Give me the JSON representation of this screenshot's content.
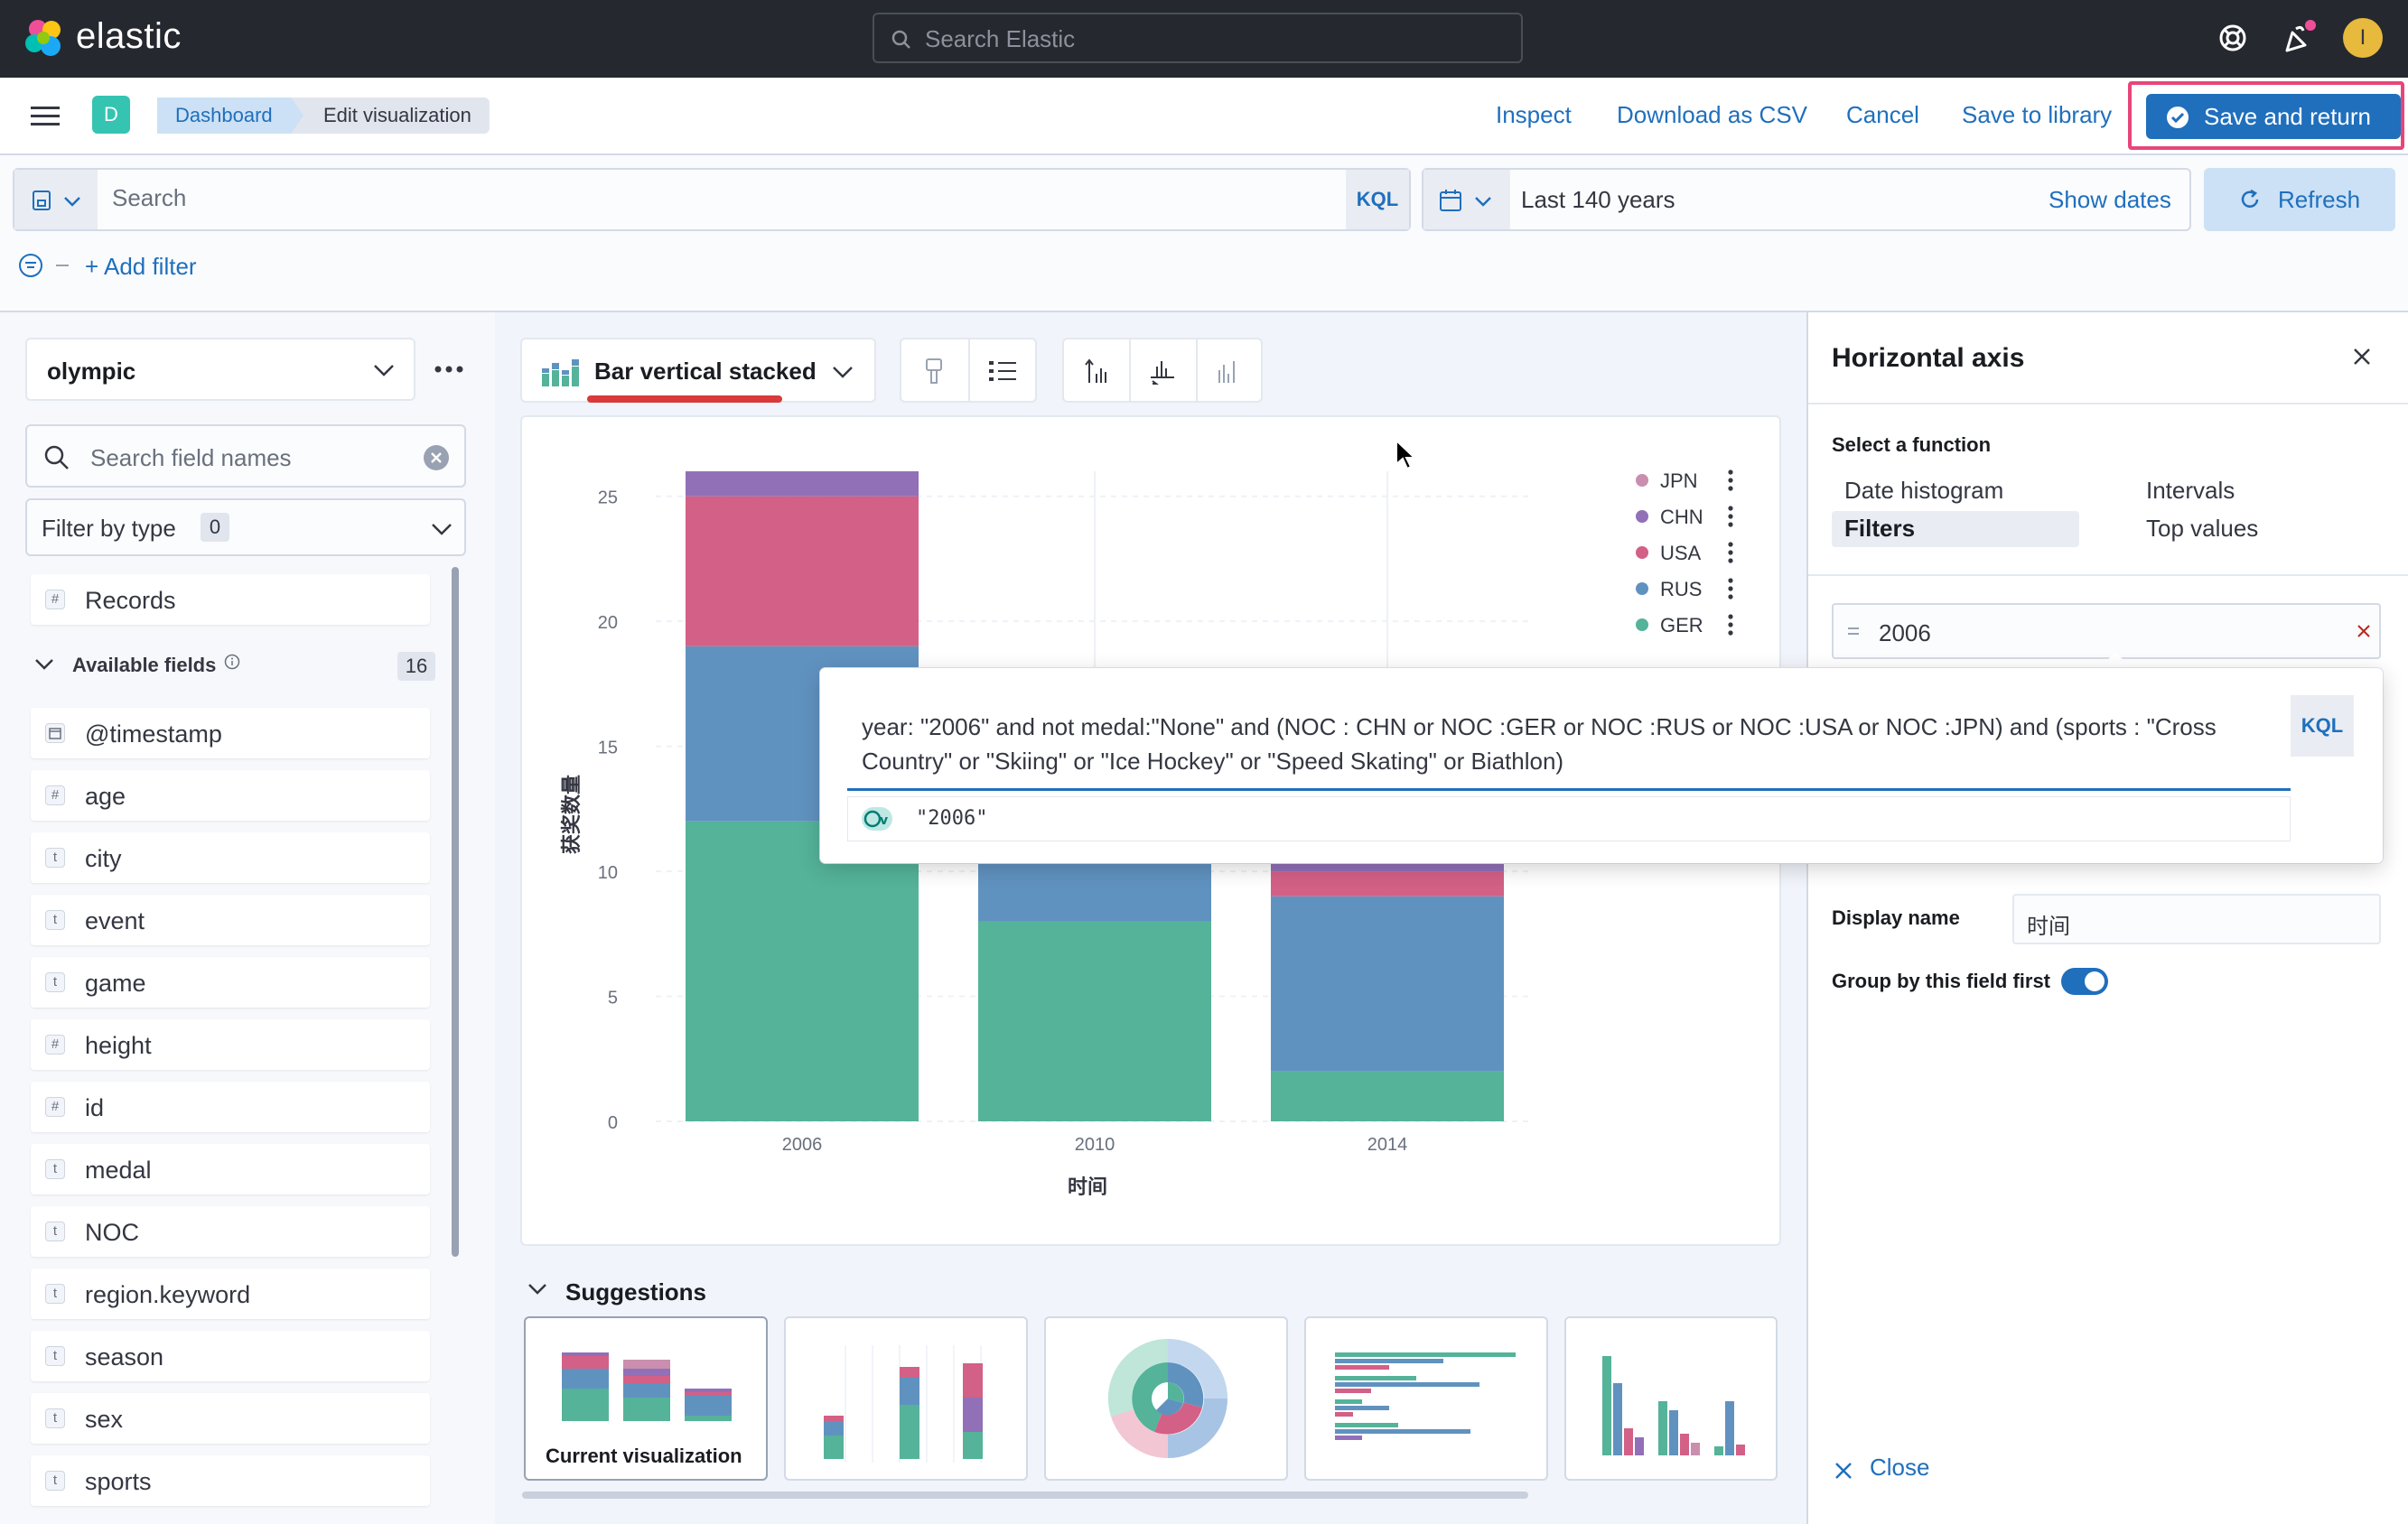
{
  "header": {
    "brand": "elastic",
    "search_placeholder": "Search Elastic",
    "avatar_initial": "I"
  },
  "nav": {
    "space_badge": "D",
    "breadcrumbs": [
      "Dashboard",
      "Edit visualization"
    ],
    "links": [
      "Inspect",
      "Download as CSV",
      "Cancel",
      "Save to library"
    ],
    "save_return": "Save and return"
  },
  "querybar": {
    "search_placeholder": "Search",
    "kql": "KQL",
    "date_range": "Last 140 years",
    "show_dates": "Show dates",
    "refresh": "Refresh",
    "add_filter": "+ Add filter"
  },
  "datasource": {
    "name": "olympic",
    "search_placeholder": "Search field names",
    "filter_by_type": "Filter by type",
    "filter_count": "0",
    "records": "Records",
    "available_fields": "Available fields",
    "available_count": "16",
    "fields": [
      {
        "type": "date",
        "name": "@timestamp"
      },
      {
        "type": "#",
        "name": "age"
      },
      {
        "type": "t",
        "name": "city"
      },
      {
        "type": "t",
        "name": "event"
      },
      {
        "type": "t",
        "name": "game"
      },
      {
        "type": "#",
        "name": "height"
      },
      {
        "type": "#",
        "name": "id"
      },
      {
        "type": "t",
        "name": "medal"
      },
      {
        "type": "t",
        "name": "NOC"
      },
      {
        "type": "t",
        "name": "region.keyword"
      },
      {
        "type": "t",
        "name": "season"
      },
      {
        "type": "t",
        "name": "sex"
      },
      {
        "type": "t",
        "name": "sports"
      }
    ]
  },
  "workspace": {
    "vis_type": "Bar vertical stacked",
    "suggestions_title": "Suggestions",
    "current_vis_label": "Current visualization"
  },
  "chart_data": {
    "type": "bar",
    "stacked": true,
    "categories": [
      "2006",
      "2010",
      "2014"
    ],
    "xlabel": "时间",
    "ylabel": "获奖数量",
    "ylim": [
      0,
      26
    ],
    "yticks": [
      0,
      5,
      10,
      15,
      20,
      25
    ],
    "legend_position": "top-right",
    "series": [
      {
        "name": "GER",
        "color": "#54b399",
        "values": [
          12,
          8,
          2
        ]
      },
      {
        "name": "RUS",
        "color": "#6092c0",
        "values": [
          7,
          5,
          7
        ]
      },
      {
        "name": "USA",
        "color": "#d36086",
        "values": [
          6,
          1,
          1
        ]
      },
      {
        "name": "CHN",
        "color": "#9170b8",
        "values": [
          1,
          1,
          1
        ]
      },
      {
        "name": "JPN",
        "color": "#ca8eae",
        "values": [
          0,
          2,
          0
        ]
      }
    ],
    "legend_order": [
      "JPN",
      "CHN",
      "USA",
      "RUS",
      "GER"
    ]
  },
  "rightpanel": {
    "title": "Horizontal axis",
    "select_function": "Select a function",
    "functions": [
      "Date histogram",
      "Intervals",
      "Filters",
      "Top values"
    ],
    "selected_function": "Filters",
    "filter_value": "2006",
    "query": "year: \"2006\"  and not medal:\"None\" and (NOC : CHN or NOC :GER or NOC :RUS or NOC :USA or NOC :JPN) and (sports : \"Cross Country\" or  \"Skiing\" or \"Ice Hockey\" or \"Speed Skating\"  or Biathlon)",
    "query_kql": "KQL",
    "suggestion": "\"2006\"",
    "display_name_label": "Display name",
    "display_name_value": "时间",
    "group_by_label": "Group by this field first",
    "group_by_enabled": true,
    "close": "Close"
  },
  "colors": {
    "accent": "#1f6fbd",
    "header_bg": "#25282f",
    "highlight": "#e8457a"
  }
}
